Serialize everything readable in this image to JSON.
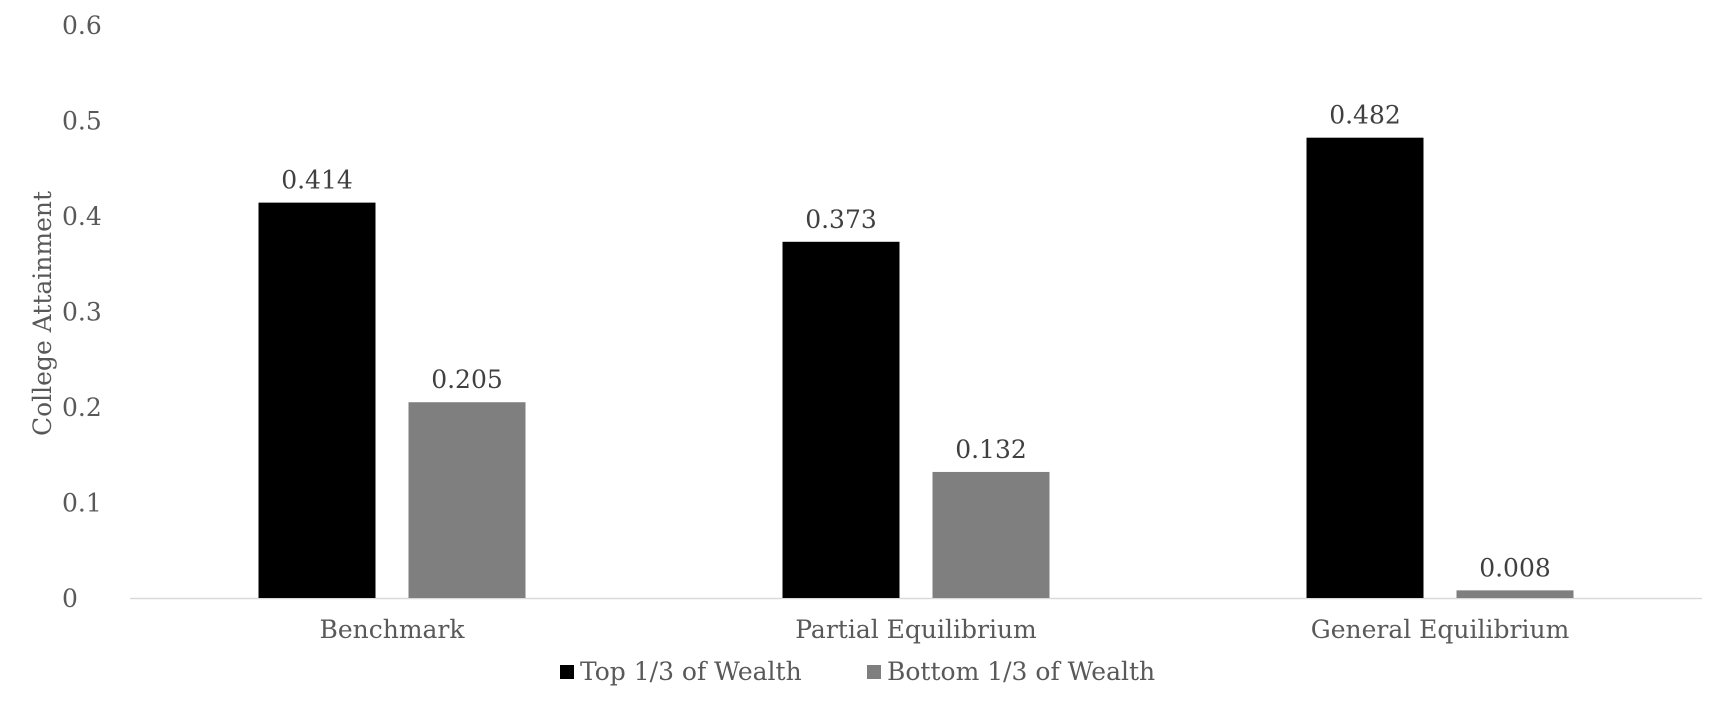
{
  "chart_data": {
    "type": "bar",
    "title": "",
    "xlabel": "",
    "ylabel": "College Attainment",
    "categories": [
      "Benchmark",
      "Partial Equilibrium",
      "General Equilibrium"
    ],
    "series": [
      {
        "name": "Top 1/3 of Wealth",
        "color": "#000000",
        "values": [
          0.414,
          0.373,
          0.482
        ],
        "labels": [
          "0.414",
          "0.373",
          "0.482"
        ]
      },
      {
        "name": "Bottom 1/3 of Wealth",
        "color": "#7f7f7f",
        "values": [
          0.205,
          0.132,
          0.008
        ],
        "labels": [
          "0.205",
          "0.132",
          "0.008"
        ]
      }
    ],
    "ylim": [
      0,
      0.6
    ],
    "yticks": [
      0,
      0.1,
      0.2,
      0.3,
      0.4,
      0.5,
      0.6
    ],
    "ytick_labels": [
      "0",
      "0.1",
      "0.2",
      "0.3",
      "0.4",
      "0.5",
      "0.6"
    ],
    "grid": false,
    "legend": "bottom"
  }
}
